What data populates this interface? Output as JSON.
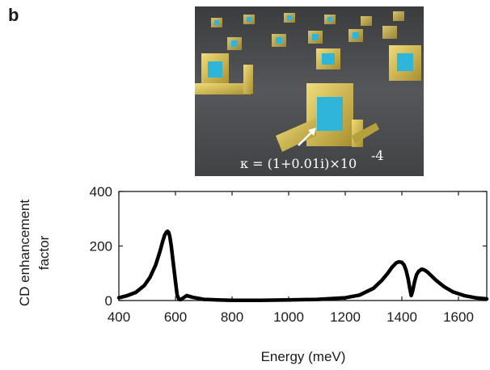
{
  "panel_label": "b",
  "illustration": {
    "description_icon": "gold-split-ring-resonator-array-render",
    "annotation": "κ = (1+0.01i)×10",
    "annotation_exponent": "-4",
    "colors": {
      "background": "#4a4c4e",
      "gold": "#c8b24a",
      "cavity": "#2fb5d9"
    }
  },
  "chart_data": {
    "type": "line",
    "title": "",
    "xlabel": "Energy (meV)",
    "ylabel_lines": [
      "CD enhancement",
      "factor"
    ],
    "xlim": [
      400,
      1700
    ],
    "ylim": [
      0,
      400
    ],
    "xticks": [
      400,
      600,
      800,
      1000,
      1200,
      1400,
      1600
    ],
    "yticks": [
      0,
      200,
      400
    ],
    "grid": false,
    "series": [
      {
        "color": "#000000",
        "x": [
          400,
          430,
          460,
          490,
          510,
          530,
          545,
          555,
          562,
          568,
          572,
          576,
          580,
          585,
          592,
          600,
          606,
          612,
          618,
          625,
          640,
          660,
          700,
          750,
          800,
          900,
          1000,
          1100,
          1200,
          1250,
          1300,
          1330,
          1350,
          1365,
          1380,
          1390,
          1400,
          1408,
          1415,
          1422,
          1428,
          1433,
          1438,
          1445,
          1452,
          1460,
          1470,
          1480,
          1490,
          1500,
          1520,
          1550,
          1580,
          1620,
          1660,
          1700
        ],
        "y": [
          10,
          18,
          30,
          55,
          85,
          130,
          180,
          218,
          240,
          251,
          254,
          250,
          235,
          200,
          140,
          70,
          20,
          5,
          3,
          8,
          18,
          12,
          4,
          2,
          1,
          1,
          2,
          4,
          10,
          20,
          45,
          75,
          100,
          122,
          138,
          142,
          140,
          130,
          110,
          80,
          45,
          18,
          35,
          70,
          95,
          108,
          115,
          112,
          105,
          95,
          75,
          50,
          32,
          18,
          10,
          6
        ]
      }
    ]
  }
}
